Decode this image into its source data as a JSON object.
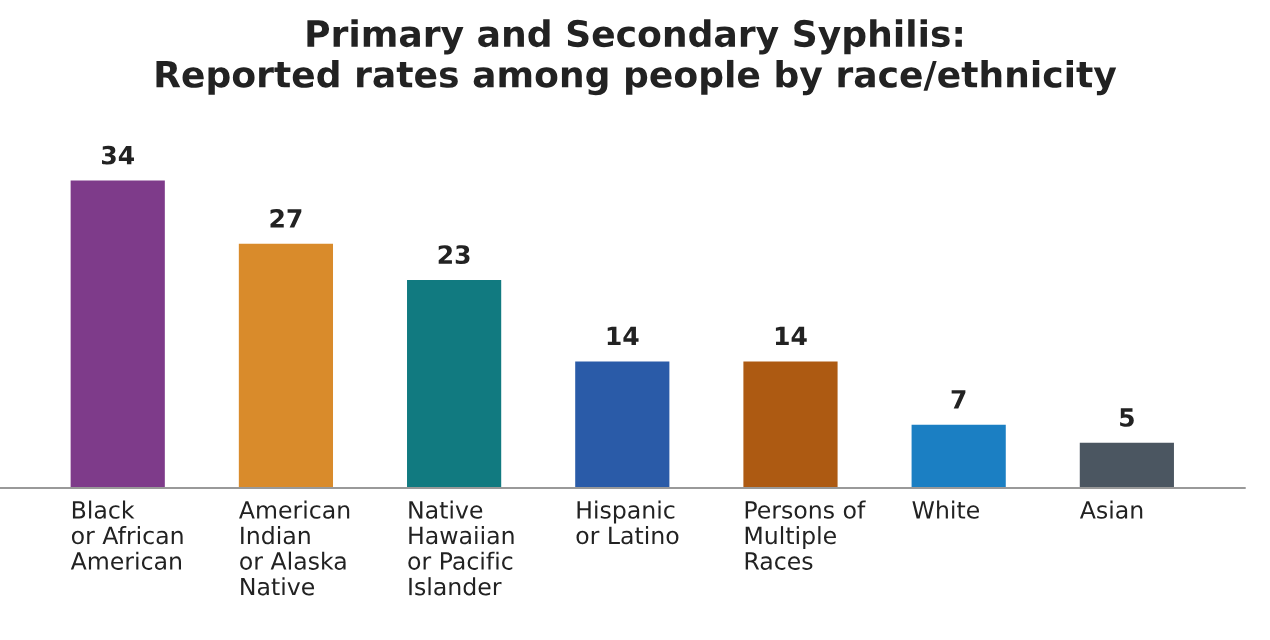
{
  "chart_data": {
    "type": "bar",
    "title": "Primary and Secondary Syphilis:\nReported rates among people by race/ethnicity",
    "categories": [
      "Black\nor African\nAmerican",
      "American\nIndian\nor Alaska\nNative",
      "Native\nHawaiian\nor Pacific\nIslander",
      "Hispanic\nor Latino",
      "Persons of\nMultiple\nRaces",
      "White",
      "Asian"
    ],
    "values": [
      34,
      27,
      23,
      14,
      14,
      7,
      5
    ],
    "colors": [
      "#7e3b8a",
      "#d98b2b",
      "#117a80",
      "#2a5ba8",
      "#ad5a12",
      "#1b7fc3",
      "#4b5661"
    ],
    "data_labels": true
  }
}
